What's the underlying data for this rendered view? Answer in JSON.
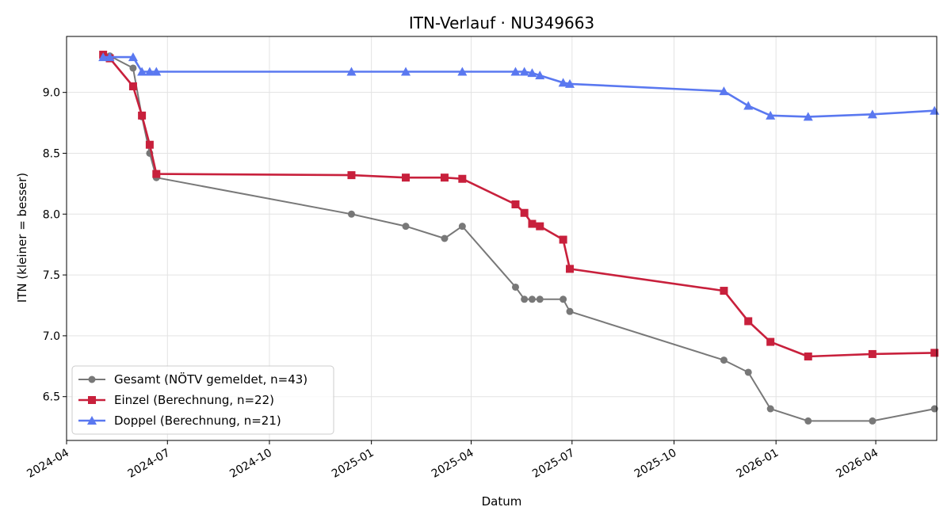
{
  "chart_data": {
    "type": "line",
    "title": "ITN-Verlauf · NU349663",
    "xlabel": "Datum",
    "ylabel": "ITN  (kleiner = besser)",
    "x_ticks": [
      "2024-04",
      "2024-07",
      "2024-10",
      "2025-01",
      "2025-04",
      "2025-07",
      "2025-10",
      "2026-01",
      "2026-04"
    ],
    "y_ticks": [
      "6.5",
      "7.0",
      "7.5",
      "8.0",
      "8.5",
      "9.0"
    ],
    "xlim": [
      "2024-04-01",
      "2026-05-26"
    ],
    "ylim": [
      6.14,
      9.46
    ],
    "grid": true,
    "legend_position": "lower-left",
    "series": [
      {
        "name": "Gesamt (NÖTV gemeldet, n=43)",
        "color": "#404040",
        "marker": "circle",
        "points": [
          [
            "2024-05-04",
            9.3
          ],
          [
            "2024-05-10",
            9.3
          ],
          [
            "2024-05-31",
            9.2
          ],
          [
            "2024-06-08",
            8.8
          ],
          [
            "2024-06-15",
            8.5
          ],
          [
            "2024-06-21",
            8.3
          ],
          [
            "2024-12-14",
            8.0
          ],
          [
            "2025-02-01",
            7.9
          ],
          [
            "2025-03-08",
            7.8
          ],
          [
            "2025-03-24",
            7.9
          ],
          [
            "2025-05-11",
            7.4
          ],
          [
            "2025-05-19",
            7.3
          ],
          [
            "2025-05-26",
            7.3
          ],
          [
            "2025-06-02",
            7.3
          ],
          [
            "2025-06-23",
            7.3
          ],
          [
            "2025-06-29",
            7.2
          ],
          [
            "2025-11-15",
            6.8
          ],
          [
            "2025-12-07",
            6.7
          ],
          [
            "2025-12-27",
            6.4
          ],
          [
            "2026-01-30",
            6.3
          ],
          [
            "2026-03-29",
            6.3
          ],
          [
            "2026-05-24",
            6.4
          ]
        ]
      },
      {
        "name": "Einzel (Berechnung, n=22)",
        "color": "#c8203c",
        "marker": "square",
        "points": [
          [
            "2024-05-04",
            9.31
          ],
          [
            "2024-05-10",
            9.28
          ],
          [
            "2024-05-31",
            9.05
          ],
          [
            "2024-06-08",
            8.81
          ],
          [
            "2024-06-15",
            8.57
          ],
          [
            "2024-06-21",
            8.33
          ],
          [
            "2024-12-14",
            8.32
          ],
          [
            "2025-02-01",
            8.3
          ],
          [
            "2025-03-08",
            8.3
          ],
          [
            "2025-03-24",
            8.29
          ],
          [
            "2025-05-11",
            8.08
          ],
          [
            "2025-05-19",
            8.01
          ],
          [
            "2025-05-26",
            7.92
          ],
          [
            "2025-06-02",
            7.9
          ],
          [
            "2025-06-23",
            7.79
          ],
          [
            "2025-06-29",
            7.55
          ],
          [
            "2025-11-15",
            7.37
          ],
          [
            "2025-12-07",
            7.12
          ],
          [
            "2025-12-27",
            6.95
          ],
          [
            "2026-01-30",
            6.83
          ],
          [
            "2026-03-29",
            6.85
          ],
          [
            "2026-05-24",
            6.86
          ]
        ]
      },
      {
        "name": "Doppel (Berechnung, n=21)",
        "color": "#5a78f0",
        "marker": "triangle",
        "points": [
          [
            "2024-05-04",
            9.29
          ],
          [
            "2024-05-10",
            9.29
          ],
          [
            "2024-05-31",
            9.29
          ],
          [
            "2024-06-08",
            9.17
          ],
          [
            "2024-06-15",
            9.17
          ],
          [
            "2024-06-21",
            9.17
          ],
          [
            "2024-12-14",
            9.17
          ],
          [
            "2025-02-01",
            9.17
          ],
          [
            "2025-03-24",
            9.17
          ],
          [
            "2025-05-11",
            9.17
          ],
          [
            "2025-05-19",
            9.17
          ],
          [
            "2025-05-26",
            9.16
          ],
          [
            "2025-06-02",
            9.14
          ],
          [
            "2025-06-23",
            9.08
          ],
          [
            "2025-06-29",
            9.07
          ],
          [
            "2025-11-15",
            9.01
          ],
          [
            "2025-12-07",
            8.89
          ],
          [
            "2025-12-27",
            8.81
          ],
          [
            "2026-01-30",
            8.8
          ],
          [
            "2026-03-29",
            8.82
          ],
          [
            "2026-05-24",
            8.85
          ]
        ]
      }
    ]
  }
}
